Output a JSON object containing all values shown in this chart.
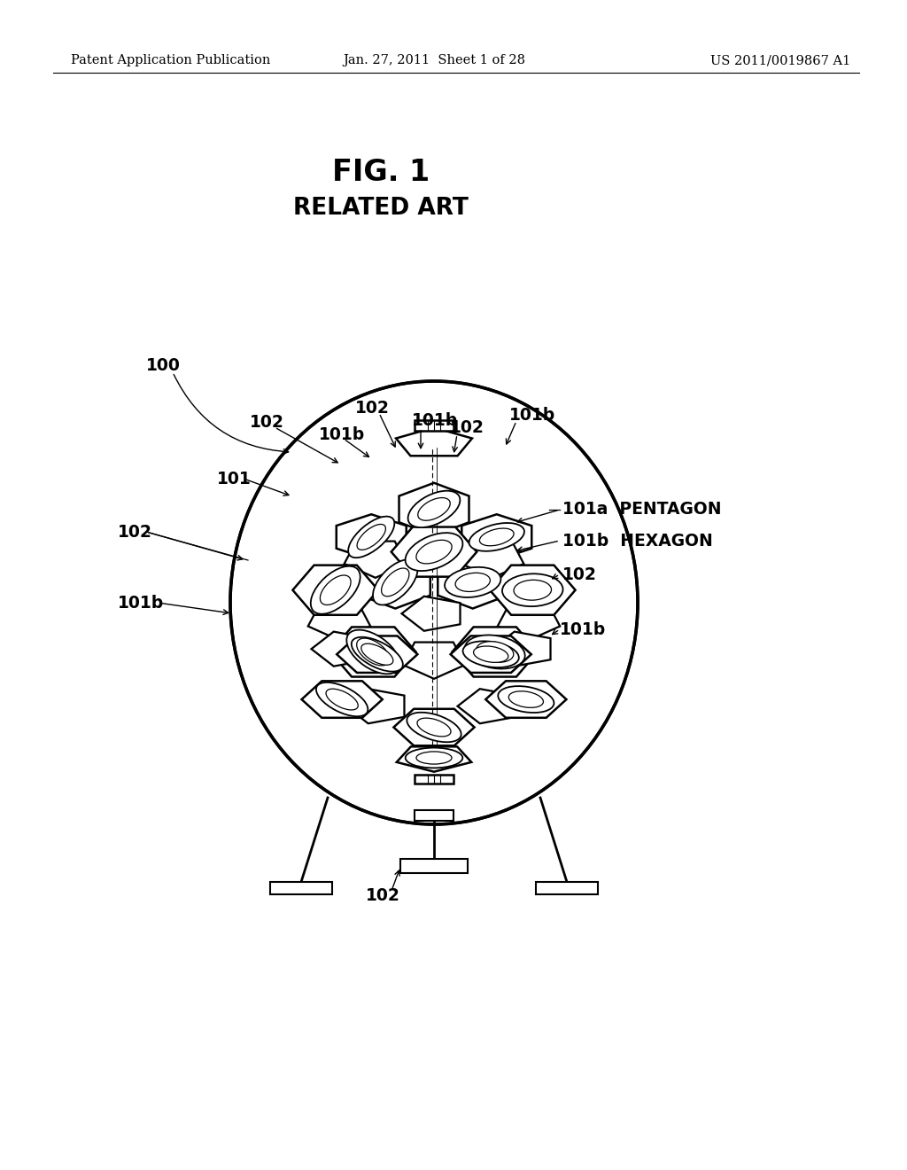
{
  "background_color": "#ffffff",
  "header_left": "Patent Application Publication",
  "header_center": "Jan. 27, 2011  Sheet 1 of 28",
  "header_right": "US 2011/0019867 A1",
  "header_fontsize": 10.5,
  "fig_title": "FIG. 1",
  "fig_subtitle": "RELATED ART",
  "title_fontsize": 24,
  "subtitle_fontsize": 19,
  "label_fontsize": 13.5,
  "text_color": "#000000",
  "line_color": "#000000"
}
